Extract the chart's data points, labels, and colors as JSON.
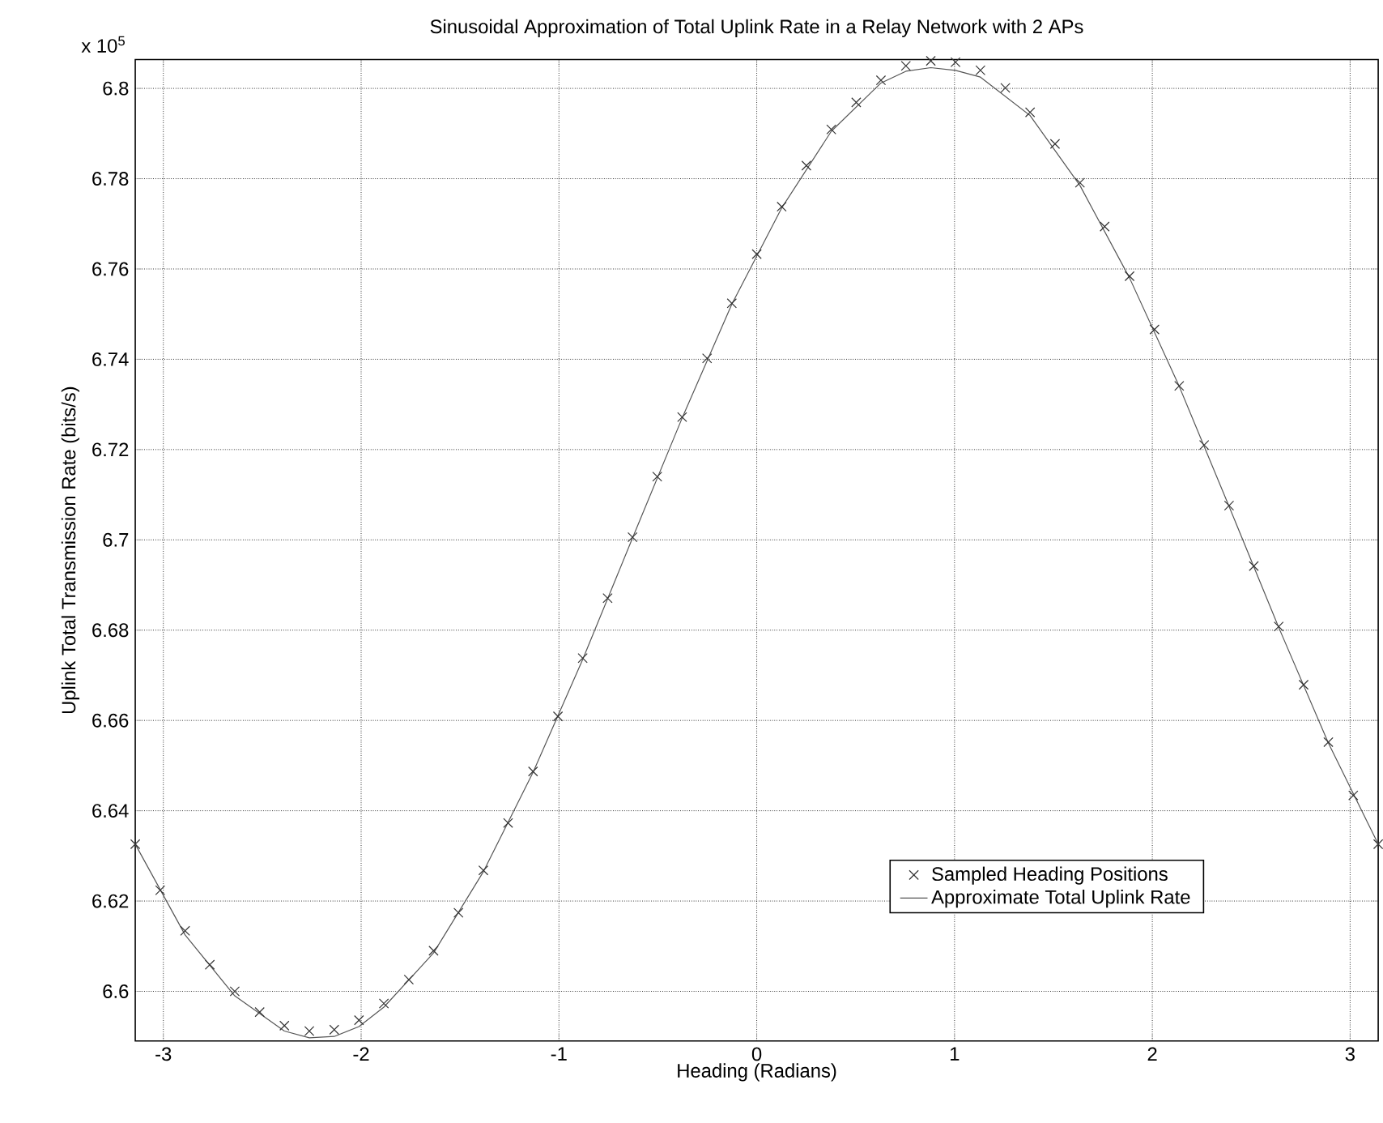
{
  "chart_data": {
    "type": "scatter",
    "title": "Sinusoidal Approximation of Total Uplink Rate in a Relay Network with 2 APs",
    "xlabel": "Heading (Radians)",
    "ylabel": "Uplink Total Transmission Rate (bits/s)",
    "annotations": [
      "x 10$^{5}$"
    ],
    "xlim": [
      -3.142,
      3.142
    ],
    "ylim": [
      6.589,
      6.8064
    ],
    "xticks": [
      -3,
      -2,
      -1,
      0,
      1,
      2,
      3
    ],
    "yticks": [
      6.6,
      6.62,
      6.64,
      6.66,
      6.68,
      6.7,
      6.72,
      6.74,
      6.76,
      6.78,
      6.8
    ],
    "grid": true,
    "legend": "bottom right",
    "series": [
      {
        "name": "Sampled Heading Positions",
        "marker": "cross",
        "color": "#333333",
        "x": [
          -3.142,
          -3.016,
          -2.89,
          -2.765,
          -2.639,
          -2.513,
          -2.388,
          -2.262,
          -2.136,
          -2.011,
          -1.885,
          -1.759,
          -1.634,
          -1.508,
          -1.382,
          -1.257,
          -1.131,
          -1.005,
          -0.88,
          -0.754,
          -0.628,
          -0.503,
          -0.377,
          -0.251,
          -0.126,
          0,
          0.126,
          0.251,
          0.377,
          0.503,
          0.628,
          0.754,
          0.88,
          1.005,
          1.131,
          1.257,
          1.382,
          1.508,
          1.634,
          1.759,
          1.885,
          2.011,
          2.136,
          2.262,
          2.388,
          2.513,
          2.639,
          2.765,
          2.89,
          3.016,
          3.142
        ],
        "values": [
          6.6326,
          6.6224,
          6.6134,
          6.6059,
          6.6,
          6.5954,
          6.5924,
          6.5912,
          6.5915,
          6.5936,
          6.5973,
          6.6026,
          6.609,
          6.6174,
          6.6268,
          6.6373,
          6.6487,
          6.6609,
          6.6738,
          6.6871,
          6.7006,
          6.714,
          6.7272,
          6.7402,
          6.7524,
          6.7633,
          6.7738,
          6.7829,
          6.7909,
          6.7969,
          6.8018,
          6.805,
          6.8061,
          6.8058,
          6.804,
          6.8001,
          6.7947,
          6.7877,
          6.7791,
          6.7694,
          6.7584,
          6.7466,
          6.7341,
          6.721,
          6.7076,
          6.6942,
          6.6808,
          6.6679,
          6.6552,
          6.6434,
          6.6326
        ]
      },
      {
        "name": "Approximate Total Uplink Rate",
        "type": "line",
        "marker": "none",
        "line_style": "solid",
        "color": "#555555",
        "x": [
          -3.142,
          -2.89,
          -2.639,
          -2.388,
          -2.262,
          -2.136,
          -2.011,
          -1.885,
          -1.634,
          -1.382,
          -1.131,
          -0.88,
          -0.628,
          -0.377,
          -0.126,
          0.126,
          0.377,
          0.628,
          0.754,
          0.88,
          1.005,
          1.131,
          1.382,
          1.634,
          1.885,
          2.136,
          2.388,
          2.639,
          2.89,
          3.142
        ],
        "values": [
          6.6326,
          6.6125,
          6.599,
          6.5912,
          6.5897,
          6.59,
          6.5922,
          6.5965,
          6.6085,
          6.6265,
          6.6485,
          6.6735,
          6.7004,
          6.727,
          6.7522,
          6.7735,
          6.7905,
          6.8012,
          6.8038,
          6.8046,
          6.804,
          6.8025,
          6.794,
          6.7785,
          6.758,
          6.734,
          6.7074,
          6.6806,
          6.655,
          6.6326
        ]
      }
    ]
  }
}
